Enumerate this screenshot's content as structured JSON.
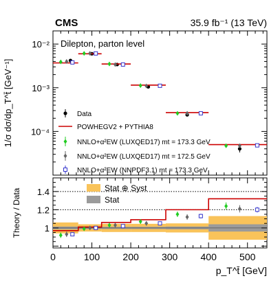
{
  "header": {
    "experiment": "CMS",
    "luminosity": "35.9 fb⁻¹ (13 TeV)"
  },
  "chart_data": [
    {
      "type": "line",
      "panel": "upper",
      "annotation": "Dilepton, parton level",
      "ylabel": "1/σ dσ/dp_T^t̄ [GeV⁻¹]",
      "yscale": "log",
      "ylim": [
        1e-05,
        0.02
      ],
      "xlim": [
        0,
        550
      ],
      "y_tick_labels": [
        "10⁻²",
        "10⁻³",
        "10⁻⁴"
      ],
      "bin_edges": [
        0,
        65,
        125,
        200,
        290,
        400,
        550
      ],
      "series": [
        {
          "name": "Data",
          "marker": "filled-circle",
          "color": "#000000",
          "x": [
            45,
            100,
            165,
            245,
            345,
            480
          ],
          "values": [
            0.0042,
            0.006,
            0.0034,
            0.00105,
            0.00024,
            4e-05
          ],
          "errors": [
            0.0002,
            0.0002,
            0.00015,
            5e-05,
            1.5e-05,
            7e-06
          ]
        },
        {
          "name": "POWHEGV2 + PYTHIA8",
          "style": "step",
          "color": "#cc0000",
          "values": [
            0.0037,
            0.006,
            0.0035,
            0.00115,
            0.00027,
            5e-05
          ]
        },
        {
          "name": "NNLO+α²EW (LUXQED17) mt = 173.3 GeV",
          "marker": "green-diamond",
          "color": "#22cc22",
          "x": [
            20,
            80,
            145,
            225,
            320,
            445
          ],
          "values": [
            0.0039,
            0.0061,
            0.0035,
            0.00112,
            0.00026,
            4.7e-05
          ]
        },
        {
          "name": "NNLO+α²EW (LUXQED17) mt = 172.5 GeV",
          "marker": "gray-diamond",
          "color": "#666666",
          "x": [
            35,
            95,
            160,
            240,
            345,
            480
          ],
          "values": [
            0.004,
            0.0061,
            0.0034,
            0.0011,
            0.00026,
            4.7e-05
          ]
        },
        {
          "name": "NNLO+α²EW (NNPDF3.1) mt = 173.3 GeV",
          "marker": "open-square",
          "color": "#3333cc",
          "x": [
            50,
            110,
            180,
            275,
            380,
            525
          ],
          "values": [
            0.0038,
            0.0061,
            0.0034,
            0.00111,
            0.00026,
            4.8e-05
          ]
        }
      ]
    },
    {
      "type": "line",
      "panel": "lower",
      "ylabel": "Theory / Data",
      "xlabel": "p_T^t̄ [GeV]",
      "xlim": [
        0,
        550
      ],
      "ylim": [
        0.78,
        1.55
      ],
      "x_ticks": [
        0,
        100,
        200,
        300,
        400,
        500
      ],
      "y_ticks": [
        1.0,
        1.2,
        1.4
      ],
      "reference_lines": [
        1.2,
        1.4
      ],
      "bin_edges": [
        0,
        65,
        125,
        200,
        290,
        400,
        550
      ],
      "bands": [
        {
          "name": "Stat ⊕ Syst",
          "color": "#f9c35a",
          "half_width": [
            0.06,
            0.04,
            0.045,
            0.045,
            0.05,
            0.13
          ]
        },
        {
          "name": "Stat",
          "color": "#9b9b9b",
          "half_width": [
            0.015,
            0.012,
            0.012,
            0.012,
            0.015,
            0.04
          ]
        }
      ],
      "series": [
        {
          "name": "POWHEGV2 + PYTHIA8",
          "style": "step",
          "color": "#cc0000",
          "values": [
            0.97,
            1.01,
            1.06,
            1.09,
            1.2,
            1.32
          ]
        },
        {
          "name": "NNLO+α²EW (LUXQED17) mt = 173.3 GeV",
          "marker": "green-diamond",
          "color": "#22cc22",
          "x": [
            20,
            80,
            145,
            225,
            320,
            445
          ],
          "values": [
            0.92,
            0.99,
            1.03,
            1.07,
            1.15,
            1.24
          ],
          "errors": [
            0.03,
            0.02,
            0.025,
            0.025,
            0.03,
            0.04
          ]
        },
        {
          "name": "NNLO+α²EW (LUXQED17) mt = 172.5 GeV",
          "marker": "gray-diamond",
          "color": "#666666",
          "x": [
            35,
            95,
            160,
            240,
            345,
            480
          ],
          "values": [
            0.93,
            1.0,
            1.03,
            1.05,
            1.12,
            1.21
          ],
          "errors": [
            0.03,
            0.02,
            0.025,
            0.025,
            0.03,
            0.04
          ]
        },
        {
          "name": "NNLO+α²EW (NNPDF3.1) mt = 173.3 GeV",
          "marker": "open-square",
          "color": "#3333cc",
          "x": [
            50,
            110,
            180,
            275,
            380,
            525
          ],
          "values": [
            0.93,
            1.0,
            1.02,
            1.05,
            1.13,
            1.2
          ],
          "errors": [
            0.02,
            0.02,
            0.02,
            0.02,
            0.025,
            0.03
          ]
        }
      ]
    }
  ]
}
